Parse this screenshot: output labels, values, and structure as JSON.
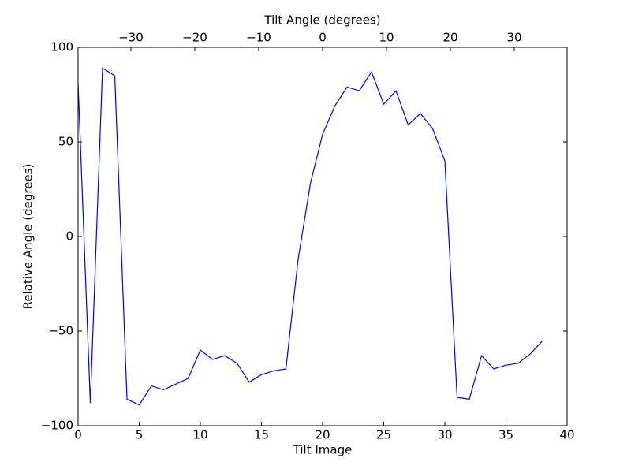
{
  "chart_data": {
    "type": "line",
    "xlabel": "Tilt Image",
    "ylabel": "Relative Angle (degrees)",
    "x2label": "Tilt Angle (degrees)",
    "x": [
      0,
      1,
      2,
      3,
      4,
      5,
      6,
      7,
      8,
      9,
      10,
      11,
      12,
      13,
      14,
      15,
      16,
      17,
      18,
      19,
      20,
      21,
      22,
      23,
      24,
      25,
      26,
      27,
      28,
      29,
      30,
      31,
      32,
      33,
      34,
      35,
      36,
      37,
      38
    ],
    "series": [
      {
        "color": "#0000ff",
        "values": [
          81,
          -88,
          89,
          85,
          -86,
          -89,
          -79,
          -81,
          -78,
          -75,
          -60,
          -65,
          -63,
          -67,
          -77,
          -73,
          -71,
          -70,
          -12,
          28,
          54,
          69,
          79,
          77,
          87,
          70,
          77,
          59,
          65,
          57,
          40,
          -85,
          -86,
          -63,
          -70,
          -68,
          -67,
          -62,
          -55
        ]
      }
    ],
    "xlim": [
      0,
      40
    ],
    "xticks": [
      0,
      5,
      10,
      15,
      20,
      25,
      30,
      35,
      40
    ],
    "ylim": [
      -100,
      100
    ],
    "yticks": [
      {
        "value": -100,
        "label": "−100"
      },
      {
        "value": -50,
        "label": "−50"
      },
      0,
      50,
      100
    ],
    "x2lim": [
      -38.27,
      38.27
    ],
    "x2ticks": [
      {
        "value": -30,
        "label": "−30"
      },
      {
        "value": -20,
        "label": "−20"
      },
      {
        "value": -10,
        "label": "−10"
      },
      0,
      10,
      20,
      30
    ],
    "grid": false
  }
}
